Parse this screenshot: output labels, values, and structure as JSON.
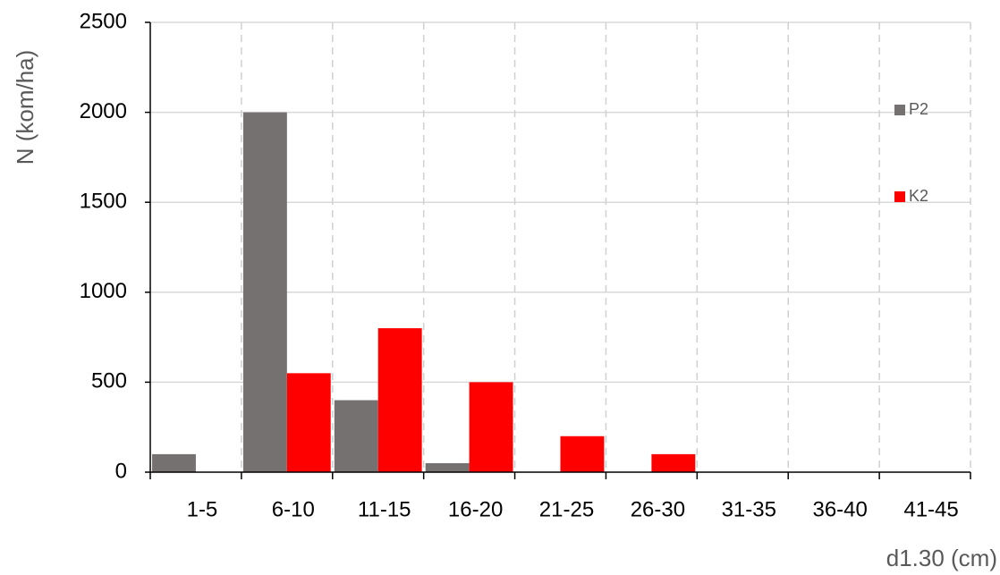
{
  "chart_data": {
    "type": "bar",
    "x_label": "d1.30 (cm)",
    "y_label": "N (kom/ha)",
    "categories": [
      "1-5",
      "6-10",
      "11-15",
      "16-20",
      "21-25",
      "26-30",
      "31-35",
      "36-40",
      "41-45"
    ],
    "series": [
      {
        "name": "P2",
        "color": "#767171",
        "values": [
          100,
          2000,
          400,
          50,
          0,
          0,
          0,
          0,
          0
        ]
      },
      {
        "name": "K2",
        "color": "#ff0000",
        "values": [
          0,
          550,
          800,
          500,
          200,
          100,
          0,
          0,
          0
        ]
      }
    ],
    "ylim": [
      0,
      2500
    ],
    "yticks": [
      0,
      500,
      1000,
      1500,
      2000,
      2500
    ],
    "grid": true,
    "legend": "right"
  }
}
